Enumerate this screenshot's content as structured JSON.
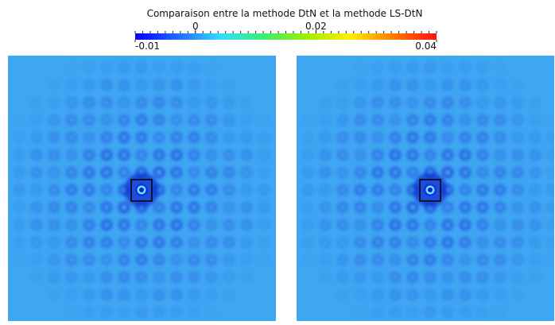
{
  "title": "Comparaison entre la methode DtN et la methode LS-DtN",
  "colorbar": {
    "range": [
      -0.01,
      0.04
    ],
    "ticks": [
      -0.01,
      0,
      0.02,
      0.04
    ],
    "colors": [
      "#0a00ff",
      "#1e6bff",
      "#38dcff",
      "#3cef6a",
      "#9ef000",
      "#ffef00",
      "#ff7a00",
      "#ff1010"
    ]
  }
}
